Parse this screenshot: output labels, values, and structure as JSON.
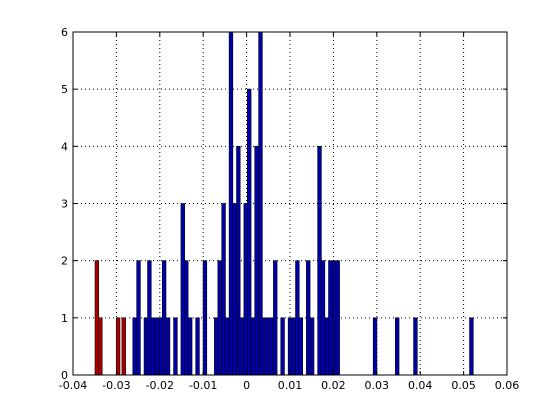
{
  "chart_data": {
    "type": "bar",
    "subtype": "histogram",
    "title": "",
    "xlabel": "",
    "ylabel": "",
    "xlim": [
      -0.04,
      0.06
    ],
    "ylim": [
      0,
      6
    ],
    "grid": true,
    "xticks": [
      -0.04,
      -0.03,
      -0.02,
      -0.01,
      0,
      0.01,
      0.02,
      0.03,
      0.04,
      0.05,
      0.06
    ],
    "xtick_labels": [
      "-0.04",
      "-0.03",
      "-0.02",
      "-0.01",
      "0",
      "0.01",
      "0.02",
      "0.03",
      "0.04",
      "0.05",
      "0.06"
    ],
    "yticks": [
      0,
      1,
      2,
      3,
      4,
      5,
      6
    ],
    "ytick_labels": [
      "0",
      "1",
      "2",
      "3",
      "4",
      "5",
      "6"
    ],
    "bin_width": 0.00085,
    "series": [
      {
        "color": "#aa0000",
        "bins": [
          {
            "x": -0.0345,
            "count": 2
          },
          {
            "x": -0.0337,
            "count": 1
          },
          {
            "x": -0.0296,
            "count": 1
          },
          {
            "x": -0.0283,
            "count": 1
          }
        ]
      },
      {
        "color": "#0000aa",
        "bins": [
          {
            "x": -0.0258,
            "count": 1
          },
          {
            "x": -0.0249,
            "count": 2
          },
          {
            "x": -0.0232,
            "count": 1
          },
          {
            "x": -0.0224,
            "count": 2
          },
          {
            "x": -0.0216,
            "count": 1
          },
          {
            "x": -0.0207,
            "count": 1
          },
          {
            "x": -0.0198,
            "count": 1
          },
          {
            "x": -0.019,
            "count": 2
          },
          {
            "x": -0.0181,
            "count": 1
          },
          {
            "x": -0.0164,
            "count": 1
          },
          {
            "x": -0.0147,
            "count": 3
          },
          {
            "x": -0.0139,
            "count": 2
          },
          {
            "x": -0.013,
            "count": 1
          },
          {
            "x": -0.0113,
            "count": 1
          },
          {
            "x": -0.0096,
            "count": 2
          },
          {
            "x": -0.007,
            "count": 1
          },
          {
            "x": -0.0062,
            "count": 2
          },
          {
            "x": -0.0053,
            "count": 3
          },
          {
            "x": -0.0045,
            "count": 1
          },
          {
            "x": -0.0036,
            "count": 6
          },
          {
            "x": -0.0028,
            "count": 3
          },
          {
            "x": -0.0019,
            "count": 4
          },
          {
            "x": -0.0011,
            "count": 1
          },
          {
            "x": -0.0002,
            "count": 3
          },
          {
            "x": 0.0006,
            "count": 5
          },
          {
            "x": 0.0015,
            "count": 1
          },
          {
            "x": 0.0023,
            "count": 4
          },
          {
            "x": 0.0032,
            "count": 6
          },
          {
            "x": 0.004,
            "count": 1
          },
          {
            "x": 0.0049,
            "count": 1
          },
          {
            "x": 0.0057,
            "count": 1
          },
          {
            "x": 0.0066,
            "count": 2
          },
          {
            "x": 0.0083,
            "count": 1
          },
          {
            "x": 0.01,
            "count": 1
          },
          {
            "x": 0.0108,
            "count": 1
          },
          {
            "x": 0.0117,
            "count": 2
          },
          {
            "x": 0.0125,
            "count": 1
          },
          {
            "x": 0.0142,
            "count": 2
          },
          {
            "x": 0.0151,
            "count": 1
          },
          {
            "x": 0.0168,
            "count": 4
          },
          {
            "x": 0.0176,
            "count": 2
          },
          {
            "x": 0.0185,
            "count": 1
          },
          {
            "x": 0.0193,
            "count": 2
          },
          {
            "x": 0.0202,
            "count": 2
          },
          {
            "x": 0.021,
            "count": 2
          },
          {
            "x": 0.0296,
            "count": 1
          },
          {
            "x": 0.0347,
            "count": 1
          },
          {
            "x": 0.0389,
            "count": 1
          },
          {
            "x": 0.0518,
            "count": 1
          }
        ]
      }
    ]
  }
}
